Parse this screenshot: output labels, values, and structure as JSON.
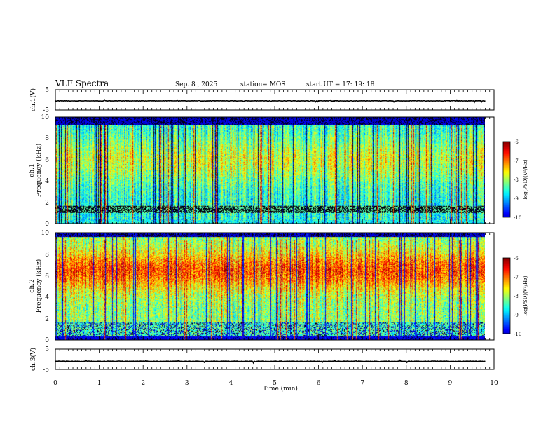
{
  "header": {
    "title": "VLF Spectra",
    "date": "Sep. 8 , 2025",
    "station": "station= MOS",
    "start": "start UT =  17: 19: 18"
  },
  "chart_data": [
    {
      "type": "line",
      "name": "ch1-voltage",
      "ylabel": "ch.1(V)",
      "ylim": [
        -5,
        5
      ],
      "y_ticks": [
        "5",
        "-5"
      ],
      "xlim": [
        0,
        10
      ],
      "x_end": 9.8,
      "baseline": -0.5
    },
    {
      "type": "heatmap",
      "name": "ch1-spectrogram",
      "ylabel_top": "ch.1",
      "ylabel": "Frequency (kHz)",
      "ylim": [
        0,
        10
      ],
      "y_ticks": [
        "0",
        "2",
        "4",
        "6",
        "8",
        "10"
      ],
      "xlim": [
        0,
        10
      ],
      "x_end": 9.8,
      "colorbar": {
        "label": "log(PSD)(V²/Hz)",
        "range": [
          -10,
          -6
        ],
        "ticks": [
          "-6",
          "-7",
          "-8",
          "-9",
          "-10"
        ]
      }
    },
    {
      "type": "heatmap",
      "name": "ch2-spectrogram",
      "ylabel_top": "ch.2",
      "ylabel": "Frequency (kHz)",
      "ylim": [
        0,
        10
      ],
      "y_ticks": [
        "0",
        "2",
        "4",
        "6",
        "8",
        "10"
      ],
      "xlim": [
        0,
        10
      ],
      "x_end": 9.8,
      "colorbar": {
        "label": "log(PSD)(V²/Hz)",
        "range": [
          -10,
          -6
        ],
        "ticks": [
          "-6",
          "-7",
          "-8",
          "-9",
          "-10"
        ]
      }
    },
    {
      "type": "line",
      "name": "ch3-voltage",
      "ylabel": "ch.3(V)",
      "ylim": [
        -5,
        5
      ],
      "y_ticks": [
        "5",
        "-5"
      ],
      "xlim": [
        0,
        10
      ],
      "x_end": 9.8,
      "baseline": -1.0
    }
  ],
  "x_axis": {
    "label": "Time (min)",
    "ticks": [
      "0",
      "1",
      "2",
      "3",
      "4",
      "5",
      "6",
      "7",
      "8",
      "9",
      "10"
    ]
  }
}
